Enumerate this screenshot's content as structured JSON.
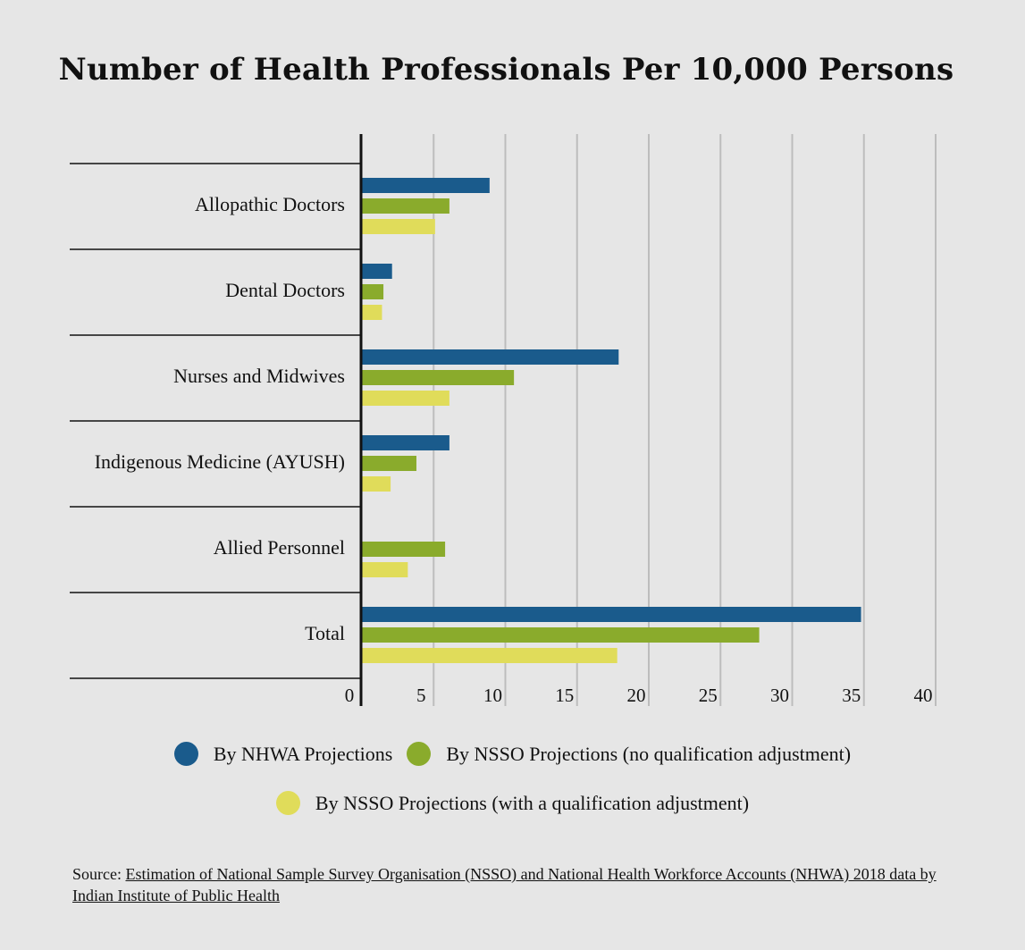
{
  "chart_data": {
    "type": "bar",
    "orientation": "horizontal",
    "title": "Number of Health Professionals Per 10,000 Persons",
    "categories": [
      "Allopathic Doctors",
      "Dental Doctors",
      "Nurses and Midwives",
      "Indigenous Medicine (AYUSH)",
      "Allied Personnel",
      "Total"
    ],
    "series": [
      {
        "name": "By NHWA Projections",
        "color": "#1a5b8c",
        "values": [
          8.9,
          2.1,
          17.9,
          6.1,
          null,
          34.8
        ]
      },
      {
        "name": "By NSSO Projections (no qualification adjustment)",
        "color": "#8aab2c",
        "values": [
          6.1,
          1.5,
          10.6,
          3.8,
          5.8,
          27.7
        ]
      },
      {
        "name": "By NSSO Projections (with a qualification adjustment)",
        "color": "#e0dc5a",
        "values": [
          5.1,
          1.4,
          6.1,
          2.0,
          3.2,
          17.8
        ]
      }
    ],
    "xlim": [
      0,
      40
    ],
    "xticks": [
      0,
      5,
      10,
      15,
      20,
      25,
      30,
      35,
      40
    ],
    "grid": true,
    "legend_position": "bottom"
  },
  "source": {
    "prefix": "Source: ",
    "link_text": "Estimation of National Sample Survey Organisation (NSSO) and National Health Workforce Accounts (NHWA) 2018 data by Indian Institute of Public Health"
  }
}
